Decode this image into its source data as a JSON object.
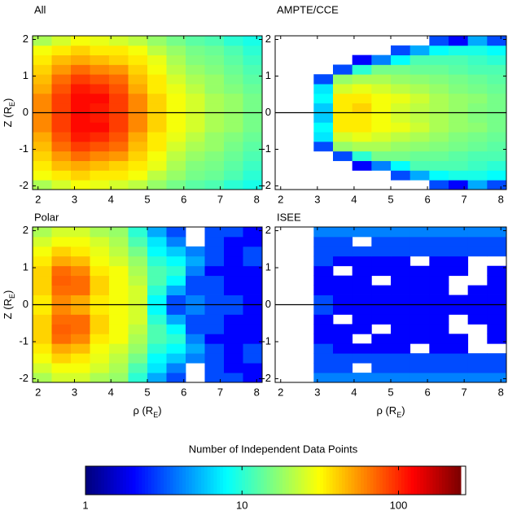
{
  "chart_data": [
    {
      "type": "heatmap",
      "title": "All",
      "ylabel": [
        "Z (R",
        "E",
        ")"
      ],
      "x_edges": [
        1.85,
        2.375,
        2.9,
        3.425,
        3.95,
        4.475,
        5.0,
        5.525,
        6.05,
        6.575,
        7.1,
        7.625,
        8.15
      ],
      "y_edges": [
        -2.1,
        -1.8375,
        -1.575,
        -1.3125,
        -1.05,
        -0.7875,
        -0.525,
        -0.2625,
        0,
        0.2625,
        0.525,
        0.7875,
        1.05,
        1.3125,
        1.575,
        1.8375,
        2.1
      ],
      "xlim": [
        1.85,
        8.15
      ],
      "ylim": [
        -2.1,
        2.1
      ],
      "xticks": [
        2,
        3,
        4,
        5,
        6,
        7,
        8
      ],
      "yticks": [
        -2,
        -1,
        0,
        1,
        2
      ],
      "hline": 0,
      "values": [
        [
          20,
          25,
          30,
          28,
          25,
          22,
          18,
          15,
          13,
          12,
          10,
          9
        ],
        [
          30,
          35,
          40,
          35,
          35,
          30,
          22,
          18,
          15,
          14,
          12,
          10
        ],
        [
          35,
          45,
          50,
          45,
          40,
          35,
          28,
          20,
          16,
          15,
          13,
          11
        ],
        [
          40,
          55,
          70,
          60,
          55,
          40,
          30,
          22,
          18,
          16,
          14,
          12
        ],
        [
          45,
          70,
          90,
          80,
          70,
          45,
          35,
          25,
          20,
          18,
          15,
          13
        ],
        [
          50,
          80,
          110,
          100,
          80,
          50,
          35,
          28,
          22,
          18,
          16,
          14
        ],
        [
          60,
          90,
          120,
          120,
          90,
          60,
          40,
          30,
          25,
          20,
          18,
          15
        ],
        [
          60,
          90,
          120,
          110,
          90,
          60,
          40,
          30,
          25,
          20,
          18,
          15
        ],
        [
          60,
          90,
          120,
          110,
          90,
          60,
          40,
          30,
          25,
          20,
          18,
          15
        ],
        [
          60,
          90,
          120,
          120,
          90,
          60,
          40,
          30,
          25,
          20,
          18,
          15
        ],
        [
          50,
          80,
          110,
          100,
          80,
          50,
          35,
          28,
          22,
          18,
          16,
          14
        ],
        [
          45,
          70,
          90,
          80,
          70,
          45,
          35,
          25,
          20,
          18,
          15,
          13
        ],
        [
          40,
          55,
          70,
          60,
          55,
          40,
          30,
          22,
          18,
          16,
          14,
          12
        ],
        [
          35,
          45,
          50,
          45,
          40,
          35,
          28,
          20,
          16,
          15,
          13,
          11
        ],
        [
          30,
          35,
          40,
          35,
          35,
          30,
          22,
          18,
          15,
          14,
          12,
          10
        ],
        [
          20,
          25,
          30,
          28,
          25,
          22,
          18,
          15,
          13,
          12,
          10,
          9
        ]
      ]
    },
    {
      "type": "heatmap",
      "title": "AMPTE/CCE",
      "x_edges": [
        1.85,
        2.375,
        2.9,
        3.425,
        3.95,
        4.475,
        5.0,
        5.525,
        6.05,
        6.575,
        7.1,
        7.625,
        8.15
      ],
      "y_edges": [
        -2.1,
        -1.8375,
        -1.575,
        -1.3125,
        -1.05,
        -0.7875,
        -0.525,
        -0.2625,
        0,
        0.2625,
        0.525,
        0.7875,
        1.05,
        1.3125,
        1.575,
        1.8375,
        2.1
      ],
      "xlim": [
        1.85,
        8.15
      ],
      "ylim": [
        -2.1,
        2.1
      ],
      "xticks": [
        2,
        3,
        4,
        5,
        6,
        7,
        8
      ],
      "yticks": [
        -2,
        -1,
        0,
        1,
        2
      ],
      "hline": 0,
      "values": [
        [
          null,
          null,
          null,
          null,
          null,
          null,
          null,
          null,
          3,
          2,
          5,
          3
        ],
        [
          null,
          null,
          null,
          null,
          null,
          null,
          3,
          5,
          8,
          9,
          9,
          8
        ],
        [
          null,
          null,
          null,
          null,
          2,
          4,
          8,
          12,
          12,
          12,
          11,
          10
        ],
        [
          null,
          null,
          null,
          3,
          10,
          15,
          15,
          14,
          14,
          13,
          12,
          12
        ],
        [
          null,
          null,
          3,
          18,
          20,
          20,
          18,
          17,
          16,
          15,
          14,
          13
        ],
        [
          null,
          null,
          7,
          25,
          28,
          25,
          22,
          20,
          18,
          16,
          15,
          14
        ],
        [
          null,
          null,
          8,
          35,
          35,
          30,
          28,
          24,
          20,
          18,
          17,
          15
        ],
        [
          null,
          null,
          6,
          35,
          35,
          30,
          25,
          22,
          20,
          18,
          16,
          15
        ],
        [
          null,
          null,
          6,
          35,
          40,
          30,
          25,
          22,
          20,
          18,
          16,
          15
        ],
        [
          null,
          null,
          8,
          35,
          35,
          30,
          28,
          24,
          20,
          18,
          17,
          15
        ],
        [
          null,
          null,
          7,
          25,
          28,
          25,
          22,
          20,
          18,
          16,
          15,
          14
        ],
        [
          null,
          null,
          3,
          18,
          20,
          20,
          18,
          17,
          16,
          15,
          14,
          13
        ],
        [
          null,
          null,
          null,
          3,
          10,
          15,
          15,
          14,
          14,
          13,
          12,
          12
        ],
        [
          null,
          null,
          null,
          null,
          2,
          4,
          8,
          12,
          12,
          12,
          11,
          10
        ],
        [
          null,
          null,
          null,
          null,
          null,
          null,
          3,
          5,
          8,
          9,
          9,
          8
        ],
        [
          null,
          null,
          null,
          null,
          null,
          null,
          null,
          null,
          3,
          2,
          5,
          3
        ]
      ]
    },
    {
      "type": "heatmap",
      "title": "Polar",
      "xlabel": [
        "ρ (R",
        "E",
        ")"
      ],
      "ylabel": [
        "Z (R",
        "E",
        ")"
      ],
      "x_edges": [
        1.85,
        2.375,
        2.9,
        3.425,
        3.95,
        4.475,
        5.0,
        5.525,
        6.05,
        6.575,
        7.1,
        7.625,
        8.15
      ],
      "y_edges": [
        -2.1,
        -1.8375,
        -1.575,
        -1.3125,
        -1.05,
        -0.7875,
        -0.525,
        -0.2625,
        0,
        0.2625,
        0.525,
        0.7875,
        1.05,
        1.3125,
        1.575,
        1.8375,
        2.1
      ],
      "xlim": [
        1.85,
        8.15
      ],
      "ylim": [
        -2.1,
        2.1
      ],
      "xticks": [
        2,
        3,
        4,
        5,
        6,
        7,
        8
      ],
      "yticks": [
        -2,
        -1,
        0,
        1,
        2
      ],
      "hline": 0,
      "values": [
        [
          20,
          25,
          25,
          20,
          18,
          10,
          5,
          3,
          null,
          3,
          3,
          2
        ],
        [
          25,
          30,
          30,
          25,
          20,
          12,
          7,
          4,
          null,
          3,
          2,
          2
        ],
        [
          30,
          40,
          35,
          28,
          22,
          15,
          8,
          6,
          4,
          3,
          2,
          3
        ],
        [
          35,
          50,
          45,
          30,
          25,
          18,
          10,
          8,
          5,
          3,
          2,
          3
        ],
        [
          40,
          70,
          60,
          35,
          30,
          20,
          12,
          10,
          4,
          2,
          2,
          2
        ],
        [
          40,
          75,
          70,
          40,
          30,
          22,
          12,
          8,
          3,
          3,
          2,
          2
        ],
        [
          40,
          70,
          70,
          40,
          30,
          25,
          10,
          5,
          3,
          3,
          2,
          2
        ],
        [
          35,
          60,
          50,
          35,
          30,
          25,
          8,
          3,
          4,
          3,
          3,
          2
        ],
        [
          35,
          60,
          50,
          35,
          30,
          25,
          8,
          3,
          4,
          3,
          3,
          2
        ],
        [
          40,
          70,
          70,
          40,
          30,
          25,
          10,
          5,
          3,
          3,
          2,
          2
        ],
        [
          40,
          75,
          70,
          40,
          30,
          22,
          12,
          8,
          3,
          3,
          2,
          2
        ],
        [
          40,
          70,
          60,
          35,
          30,
          20,
          12,
          10,
          4,
          2,
          2,
          2
        ],
        [
          35,
          50,
          45,
          30,
          25,
          18,
          10,
          8,
          5,
          3,
          2,
          3
        ],
        [
          30,
          40,
          35,
          28,
          22,
          15,
          8,
          6,
          4,
          3,
          2,
          3
        ],
        [
          25,
          30,
          30,
          25,
          20,
          12,
          7,
          4,
          null,
          3,
          2,
          2
        ],
        [
          20,
          25,
          25,
          20,
          18,
          10,
          5,
          3,
          null,
          3,
          3,
          2
        ]
      ]
    },
    {
      "type": "heatmap",
      "title": "ISEE",
      "xlabel": [
        "ρ (R",
        "E",
        ")"
      ],
      "x_edges": [
        1.85,
        2.375,
        2.9,
        3.425,
        3.95,
        4.475,
        5.0,
        5.525,
        6.05,
        6.575,
        7.1,
        7.625,
        8.15
      ],
      "y_edges": [
        -2.1,
        -1.8375,
        -1.575,
        -1.3125,
        -1.05,
        -0.7875,
        -0.525,
        -0.2625,
        0,
        0.2625,
        0.525,
        0.7875,
        1.05,
        1.3125,
        1.575,
        1.8375,
        2.1
      ],
      "xlim": [
        1.85,
        8.15
      ],
      "ylim": [
        -2.1,
        2.1
      ],
      "xticks": [
        2,
        3,
        4,
        5,
        6,
        7,
        8
      ],
      "yticks": [
        -2,
        -1,
        0,
        1,
        2
      ],
      "hline": 0,
      "values": [
        [
          null,
          null,
          4,
          4,
          4,
          4,
          4,
          4,
          4,
          4,
          4,
          4
        ],
        [
          null,
          null,
          3,
          3,
          null,
          3,
          3,
          3,
          3,
          3,
          3,
          3
        ],
        [
          null,
          null,
          3,
          3,
          3,
          3,
          3,
          3,
          3,
          3,
          3,
          3
        ],
        [
          null,
          null,
          3,
          2,
          2,
          2,
          2,
          null,
          2,
          2,
          null,
          null
        ],
        [
          null,
          null,
          2,
          2,
          null,
          2,
          2,
          2,
          2,
          2,
          null,
          2
        ],
        [
          null,
          null,
          2,
          2,
          2,
          null,
          2,
          2,
          2,
          null,
          null,
          2
        ],
        [
          null,
          null,
          2,
          null,
          2,
          2,
          2,
          2,
          2,
          null,
          2,
          2
        ],
        [
          null,
          null,
          3,
          2,
          2,
          2,
          2,
          2,
          2,
          2,
          2,
          2
        ],
        [
          null,
          null,
          3,
          2,
          2,
          2,
          2,
          2,
          2,
          2,
          2,
          2
        ],
        [
          null,
          null,
          2,
          2,
          2,
          2,
          2,
          2,
          2,
          null,
          2,
          2
        ],
        [
          null,
          null,
          2,
          2,
          2,
          null,
          2,
          2,
          2,
          null,
          null,
          2
        ],
        [
          null,
          null,
          2,
          null,
          2,
          2,
          2,
          2,
          2,
          2,
          null,
          2
        ],
        [
          null,
          null,
          3,
          2,
          2,
          2,
          2,
          null,
          2,
          2,
          null,
          null
        ],
        [
          null,
          null,
          3,
          3,
          3,
          3,
          3,
          3,
          3,
          3,
          3,
          3
        ],
        [
          null,
          null,
          3,
          3,
          null,
          3,
          3,
          3,
          3,
          3,
          3,
          3
        ],
        [
          null,
          null,
          4,
          4,
          4,
          4,
          4,
          4,
          4,
          4,
          4,
          4
        ]
      ]
    },
    {
      "type": "colorbar",
      "title": "Number of Independent Data Points",
      "colormap": "jet",
      "log": true,
      "clim": [
        1,
        250
      ],
      "ticks": [
        1,
        10,
        100
      ]
    }
  ]
}
